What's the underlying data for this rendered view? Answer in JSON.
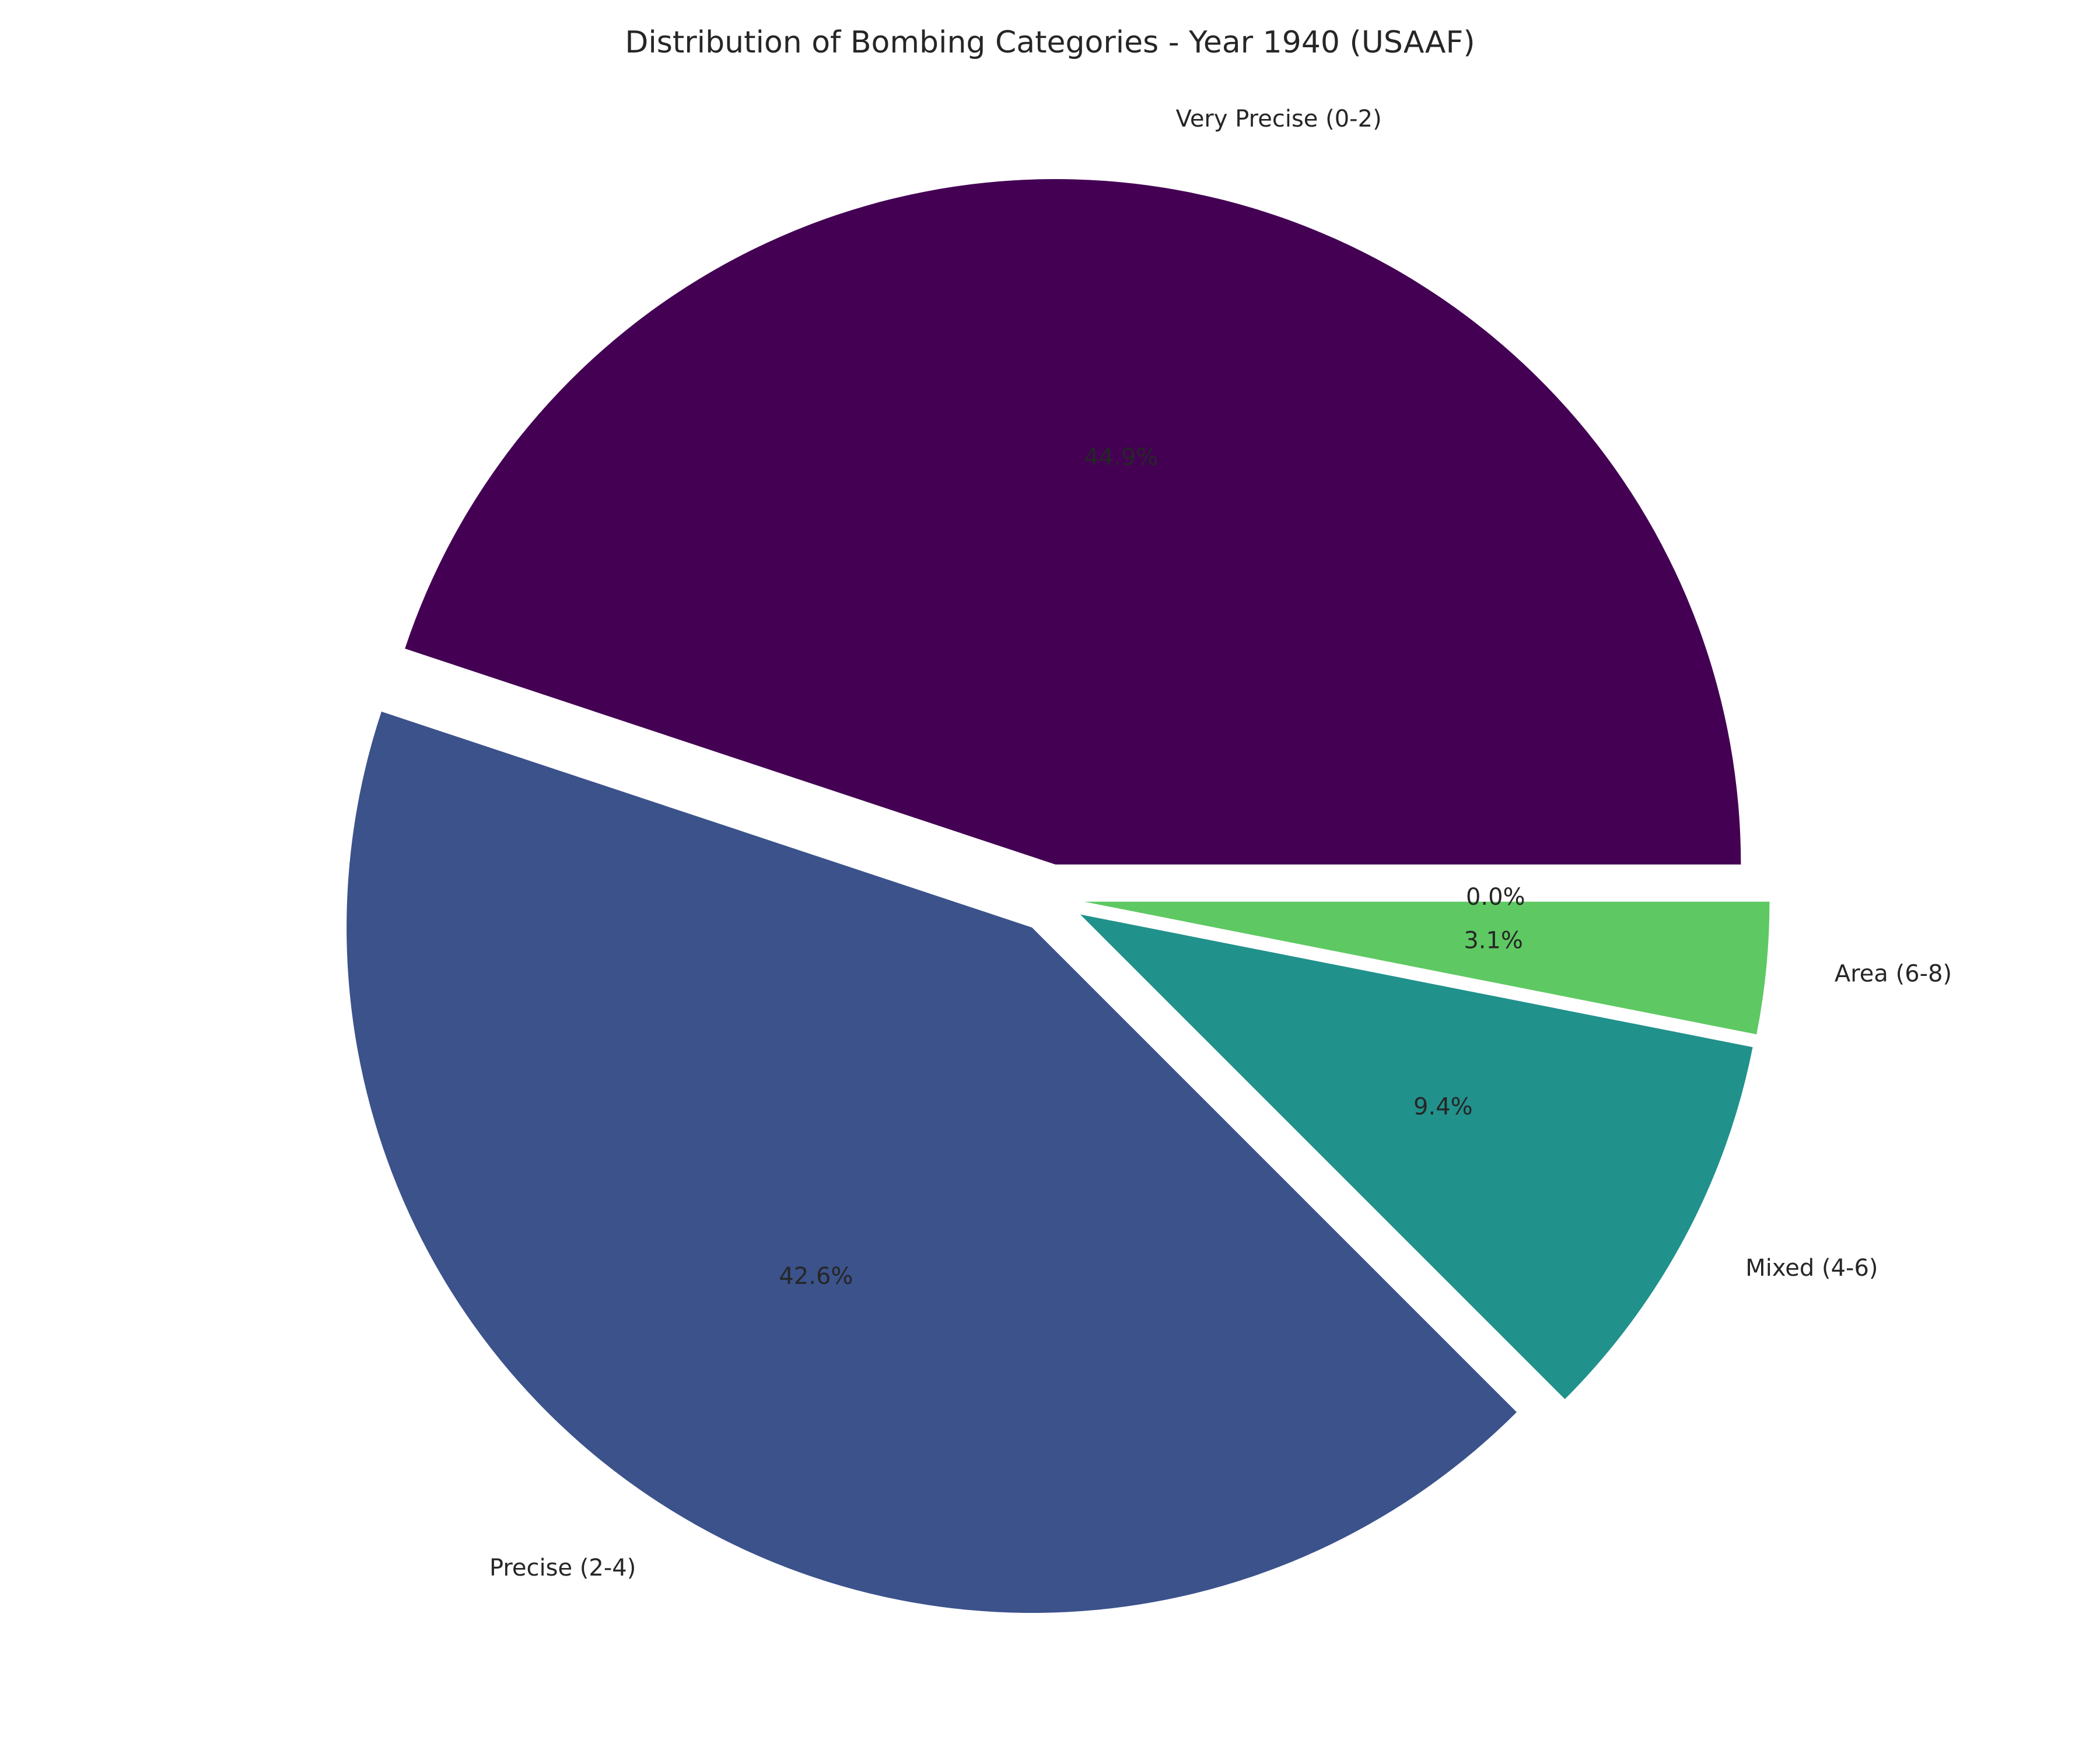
{
  "chart_data": {
    "type": "pie",
    "title": "Distribution of Bombing Categories - Year 1940 (USAAF)",
    "categories": [
      "Very Precise (0-2)",
      "Precise (2-4)",
      "Mixed (4-6)",
      "Area (6-8)",
      ""
    ],
    "values": [
      44.9,
      42.6,
      9.4,
      3.1,
      0.0
    ],
    "percent_labels": [
      "44.9%",
      "42.6%",
      "9.4%",
      "3.1%",
      "0.0%"
    ],
    "colors": [
      "#440154",
      "#3b528b",
      "#21918c",
      "#5ec962",
      "#fde725"
    ],
    "exploded": true,
    "start_angle_deg": 0,
    "direction": "counterclockwise"
  }
}
